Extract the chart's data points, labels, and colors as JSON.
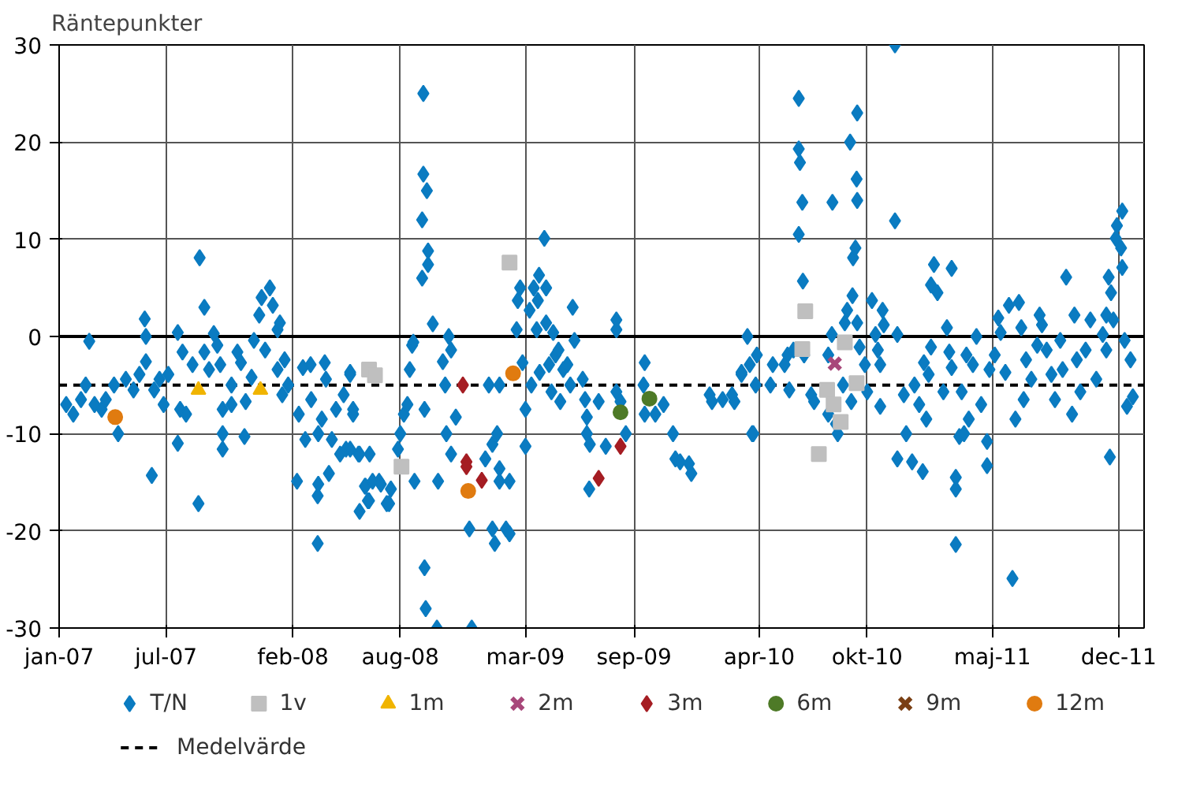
{
  "chart_data": {
    "type": "scatter",
    "ylabel": "Räntepunkter",
    "xlim": [
      "2007-01-01",
      "2012-01-13"
    ],
    "ylim": [
      -30,
      30
    ],
    "xticks": [
      {
        "value": "2007-01-01",
        "label": "jan-07"
      },
      {
        "value": "2007-07-01",
        "label": "jul-07"
      },
      {
        "value": "2008-02-01",
        "label": "feb-08"
      },
      {
        "value": "2008-08-01",
        "label": "aug-08"
      },
      {
        "value": "2009-03-01",
        "label": "mar-09"
      },
      {
        "value": "2009-09-01",
        "label": "sep-09"
      },
      {
        "value": "2010-04-01",
        "label": "apr-10"
      },
      {
        "value": "2010-10-01",
        "label": "okt-10"
      },
      {
        "value": "2011-05-01",
        "label": "maj-11"
      },
      {
        "value": "2011-12-01",
        "label": "dec-11"
      }
    ],
    "yticks": [
      -30,
      -20,
      -10,
      0,
      10,
      20,
      30
    ],
    "grid": true,
    "legend": "bottom",
    "ref_lines": [
      {
        "axis": "y",
        "value": 0,
        "color": "#000000",
        "line_style": "solid"
      },
      {
        "axis": "y",
        "value": -5,
        "label": "Medelvärde",
        "color": "#000000",
        "line_style": "dashed"
      }
    ],
    "series": [
      {
        "name": "T/N",
        "color": "#0a7bc1",
        "marker": "diamond",
        "x": [
          "2007-01-13",
          "2007-01-25",
          "2007-02-07",
          "2007-02-21",
          "2007-02-15",
          "2007-03-02",
          "2007-03-14",
          "2007-03-21",
          "2007-04-04",
          "2007-04-11",
          "2007-04-24",
          "2007-05-07",
          "2007-05-17",
          "2007-05-26",
          "2007-05-28",
          "2007-05-28",
          "2007-06-07",
          "2007-06-11",
          "2007-06-20",
          "2007-06-27",
          "2007-07-05",
          "2007-07-21",
          "2007-07-21",
          "2007-07-29",
          "2007-07-25",
          "2007-08-04",
          "2007-08-15",
          "2007-08-25",
          "2007-08-27",
          "2007-09-04",
          "2007-09-04",
          "2007-09-12",
          "2007-09-20",
          "2007-09-26",
          "2007-10-01",
          "2007-10-05",
          "2007-10-05",
          "2007-10-20",
          "2007-10-05",
          "2007-10-20",
          "2007-10-30",
          "2007-11-05",
          "2007-11-11",
          "2007-11-13",
          "2007-11-23",
          "2007-11-27",
          "2007-12-06",
          "2007-12-10",
          "2007-12-16",
          "2007-12-24",
          "2007-12-29",
          "2008-01-06",
          "2008-01-10",
          "2008-01-06",
          "2008-01-18",
          "2008-01-14",
          "2008-01-24",
          "2008-02-08",
          "2008-02-11",
          "2008-02-18",
          "2008-02-22",
          "2008-03-02",
          "2008-03-03",
          "2008-03-14",
          "2008-03-14",
          "2008-03-15",
          "2008-03-15",
          "2008-03-21",
          "2008-03-26",
          "2008-03-28",
          "2008-04-02",
          "2008-04-07",
          "2008-04-14",
          "2008-04-21",
          "2008-04-27",
          "2008-05-01",
          "2008-05-08",
          "2008-05-13",
          "2008-05-22",
          "2008-05-24",
          "2008-06-02",
          "2008-06-09",
          "2008-06-10",
          "2008-06-26",
          "2008-07-09",
          "2008-06-07",
          "2008-06-03",
          "2008-06-15",
          "2008-06-29",
          "2008-07-13",
          "2008-07-16",
          "2008-05-24",
          "2008-05-08",
          "2008-05-13",
          "2008-05-08",
          "2008-08-01",
          "2008-07-28",
          "2008-08-07",
          "2008-08-13",
          "2008-08-17",
          "2008-08-21",
          "2008-08-23",
          "2008-08-25",
          "2008-09-09",
          "2008-09-09",
          "2008-09-15",
          "2008-09-07",
          "2008-09-17",
          "2008-09-17",
          "2008-09-07",
          "2008-09-11",
          "2008-09-13",
          "2008-10-02",
          "2008-09-11",
          "2008-09-25",
          "2008-10-04",
          "2008-10-12",
          "2008-10-16",
          "2008-10-18",
          "2008-10-22",
          "2008-10-26",
          "2008-11-03",
          "2008-10-26",
          "2008-11-26",
          "2008-11-30",
          "2008-12-23",
          "2008-12-29",
          "2009-01-04",
          "2009-01-08",
          "2009-01-04",
          "2009-01-12",
          "2009-01-16",
          "2009-01-16",
          "2009-01-27",
          "2009-02-02",
          "2009-02-02",
          "2009-01-16",
          "2009-02-14",
          "2009-02-16",
          "2009-02-20",
          "2009-02-24",
          "2009-03-01",
          "2009-03-01",
          "2009-03-08",
          "2009-03-11",
          "2009-03-15",
          "2009-03-20",
          "2009-03-22",
          "2009-03-24",
          "2009-03-25",
          "2009-04-02",
          "2009-04-05",
          "2009-04-05",
          "2009-04-10",
          "2009-04-14",
          "2009-04-17",
          "2009-04-21",
          "2009-04-26",
          "2009-04-29",
          "2009-05-04",
          "2009-05-11",
          "2009-05-16",
          "2009-05-20",
          "2009-05-23",
          "2009-06-06",
          "2009-06-10",
          "2009-06-13",
          "2009-06-13",
          "2009-06-18",
          "2009-06-17",
          "2009-07-03",
          "2009-07-15",
          "2009-08-02",
          "2009-08-02",
          "2009-08-02",
          "2009-08-09",
          "2009-08-18",
          "2009-09-19",
          "2009-09-17",
          "2009-09-19",
          "2009-10-07",
          "2009-10-21",
          "2009-11-06",
          "2009-11-10",
          "2009-11-18",
          "2009-12-03",
          "2009-12-07",
          "2010-01-07",
          "2010-01-11",
          "2010-01-29",
          "2010-02-18",
          "2010-03-02",
          "2010-03-12",
          "2010-03-16",
          "2010-03-22",
          "2010-02-14",
          "2010-03-20",
          "2010-03-28",
          "2010-03-02",
          "2010-03-26",
          "2010-04-24",
          "2010-04-20",
          "2010-05-14",
          "2010-05-19",
          "2010-05-22",
          "2010-05-29",
          "2010-06-07",
          "2010-06-07",
          "2010-06-09",
          "2010-06-13",
          "2010-06-07",
          "2010-06-14",
          "2010-06-16",
          "2010-06-28",
          "2010-07-03",
          "2010-07-27",
          "2010-08-02",
          "2010-08-03",
          "2010-07-27",
          "2010-08-09",
          "2010-08-12",
          "2010-08-21",
          "2010-08-24",
          "2010-08-28",
          "2010-09-02",
          "2010-09-06",
          "2010-09-07",
          "2010-09-11",
          "2010-09-13",
          "2010-09-14",
          "2010-09-14",
          "2010-09-14",
          "2010-09-04",
          "2010-09-18",
          "2010-09-27",
          "2010-10-01",
          "2010-10-09",
          "2010-10-15",
          "2010-10-19",
          "2010-10-23",
          "2010-10-23",
          "2010-10-27",
          "2010-10-29",
          "2010-11-17",
          "2010-11-17",
          "2010-11-21",
          "2010-11-21",
          "2010-12-02",
          "2010-12-06",
          "2010-12-16",
          "2010-12-20",
          "2010-12-28",
          "2011-01-03",
          "2011-01-05",
          "2011-01-09",
          "2011-01-13",
          "2011-01-17",
          "2011-01-17",
          "2011-01-22",
          "2011-01-28",
          "2011-02-07",
          "2011-02-13",
          "2011-02-17",
          "2011-02-21",
          "2011-02-21",
          "2011-02-28",
          "2011-02-28",
          "2011-02-28",
          "2011-03-06",
          "2011-03-10",
          "2011-03-14",
          "2011-03-18",
          "2011-03-22",
          "2011-03-29",
          "2011-04-04",
          "2011-04-12",
          "2011-04-22",
          "2011-04-22",
          "2011-04-26",
          "2011-05-05",
          "2011-05-11",
          "2011-05-15",
          "2011-05-23",
          "2011-05-29",
          "2011-06-04",
          "2011-06-09",
          "2011-06-15",
          "2011-06-19",
          "2011-06-23",
          "2011-06-27",
          "2011-07-06",
          "2011-07-16",
          "2011-07-20",
          "2011-07-24",
          "2011-08-01",
          "2011-08-09",
          "2011-08-15",
          "2011-08-24",
          "2011-08-28",
          "2011-09-03",
          "2011-09-13",
          "2011-09-17",
          "2011-09-21",
          "2011-09-27",
          "2011-10-06",
          "2011-10-14",
          "2011-10-24",
          "2011-11-04",
          "2011-11-10",
          "2011-11-10",
          "2011-11-14",
          "2011-11-16",
          "2011-11-18",
          "2011-11-22",
          "2011-11-26",
          "2011-11-28",
          "2011-12-05",
          "2011-12-07",
          "2011-12-07",
          "2011-12-11",
          "2011-12-15",
          "2011-12-21",
          "2011-12-25"
        ],
        "values": [
          -7.0,
          -8.0,
          -6.5,
          -0.5,
          -5,
          -7,
          -7.5,
          -6.5,
          -5,
          -10,
          -4.4,
          -5.5,
          -3.9,
          1.8,
          0,
          -2.6,
          -14.3,
          -5.5,
          -4.4,
          -7,
          -3.9,
          0.4,
          -11,
          -1.6,
          -7.5,
          -8,
          -2.9,
          -17.2,
          8.1,
          3,
          -1.6,
          -3.4,
          0.3,
          -0.9,
          -2.9,
          -7.5,
          -11.6,
          -7,
          -10,
          -5,
          -1.6,
          -2.7,
          -10.3,
          -6.7,
          -4.2,
          -0.4,
          2.2,
          4,
          -1.4,
          5,
          3.2,
          0.7,
          1.4,
          -3.4,
          -2.4,
          -6,
          -5,
          -14.9,
          -8,
          -3.2,
          -10.6,
          -2.9,
          -6.5,
          -21.3,
          -16.4,
          -15.2,
          -10,
          -8.5,
          -2.7,
          -4.4,
          -14.1,
          -10.6,
          -7.5,
          -12.1,
          -6,
          -11.6,
          -3.7,
          -8,
          -12.1,
          -18,
          -15.4,
          -16.9,
          -12.1,
          -14.9,
          -17.2,
          -16.9,
          -15.4,
          -14.9,
          -15.2,
          -17.2,
          -15.7,
          -12.1,
          -11.6,
          -7.5,
          -3.9,
          -10,
          -11.6,
          -8,
          -7,
          -3.4,
          -0.9,
          -0.6,
          -14.9,
          25,
          16.7,
          15,
          12,
          8.8,
          7.4,
          6,
          -23.8,
          -28,
          -30,
          -7.5,
          1.3,
          -14.9,
          -2.6,
          -5,
          -10,
          0,
          -1.4,
          -8.3,
          -12.1,
          -19.8,
          -30,
          -12.6,
          -5,
          -19.8,
          -21.3,
          -11.1,
          -10,
          -13.6,
          -14.9,
          -19.8,
          -20.3,
          -14.9,
          -5,
          0.7,
          3.7,
          5,
          -2.7,
          -7.5,
          -11.3,
          2.7,
          -5,
          5,
          0.7,
          3.7,
          6.3,
          -3.7,
          10.1,
          5,
          1.4,
          -2.9,
          -5.7,
          0.4,
          -1.9,
          -1.4,
          -6.7,
          -3.4,
          -2.9,
          -5,
          3,
          -0.4,
          -4.4,
          -6.5,
          -8.3,
          -10,
          -11.1,
          -15.7,
          -6.7,
          -11.3,
          1.7,
          0.7,
          -5.7,
          -6.7,
          -10,
          -2.7,
          -5,
          -8,
          -8,
          -7,
          -10,
          -12.6,
          -12.9,
          -13.1,
          -14.1,
          -6,
          -6.7,
          -6.5,
          -6.7,
          -3.7,
          0,
          -2.9,
          -10,
          -6,
          -10,
          -1.9,
          -3.9,
          -5,
          -2.9,
          -5,
          -2.9,
          -1.9,
          -5.5,
          -1.4,
          24.5,
          19.3,
          17.9,
          13.8,
          10.5,
          5.7,
          -1.9,
          -6,
          -6.7,
          -1.9,
          0.2,
          13.8,
          -8,
          -9,
          -10,
          -5,
          1.4,
          2.7,
          20,
          4.2,
          8.1,
          9.1,
          16.2,
          23,
          14,
          1.4,
          -6.7,
          -1.1,
          -2.9,
          -5.7,
          3.7,
          0.2,
          -1.4,
          -2.9,
          -7.2,
          2.7,
          1.2,
          30,
          11.9,
          0.2,
          -12.6,
          -6,
          -10,
          -12.9,
          -5,
          -7,
          -13.9,
          -2.7,
          -8.5,
          -3.9,
          -1.1,
          5.3,
          7.4,
          4.5,
          -5.7,
          0.9,
          -1.6,
          7,
          -3.2,
          -15.7,
          -14.5,
          -21.4,
          -10.3,
          -5.7,
          -10,
          -1.9,
          -8.5,
          -2.9,
          0,
          -7,
          -13.3,
          -10.8,
          -3.4,
          -1.9,
          1.9,
          0.4,
          -3.7,
          3.2,
          -24.9,
          -8.5,
          3.5,
          0.9,
          -6.5,
          -2.4,
          -4.4,
          -0.9,
          2.2,
          1.2,
          -1.4,
          -3.9,
          -6.5,
          -0.4,
          -3.4,
          6.1,
          -8,
          2.2,
          -2.4,
          -5.7,
          -1.4,
          1.7,
          -4.4,
          0.2,
          -1.4,
          2.2,
          6.1,
          -12.4,
          4.5,
          1.7,
          10.1,
          11.4,
          9.1,
          12.9,
          7.1,
          -0.4,
          -7.2,
          -2.4,
          -6.2
        ]
      },
      {
        "name": "1v",
        "color": "#bfbfbf",
        "marker": "square",
        "x": [
          "2008-06-09",
          "2008-06-19",
          "2008-08-03",
          "2009-02-02",
          "2010-06-18",
          "2010-06-13",
          "2010-08-24",
          "2010-07-25",
          "2010-08-05",
          "2010-08-17",
          "2010-07-11",
          "2010-09-13"
        ],
        "values": [
          -3.4,
          -4.0,
          -13.4,
          7.6,
          2.6,
          -1.3,
          -0.6,
          -5.5,
          -7,
          -8.8,
          -12.1,
          -4.8
        ]
      },
      {
        "name": "1m",
        "color": "#f0b400",
        "marker": "triangle",
        "x": [
          "2007-08-25",
          "2007-12-08"
        ],
        "values": [
          -5.5,
          -5.5
        ]
      },
      {
        "name": "2m",
        "color": "#a8477a",
        "marker": "cross",
        "x": [
          "2010-08-07"
        ],
        "values": [
          -2.8
        ]
      },
      {
        "name": "3m",
        "color": "#a51d23",
        "marker": "diamond",
        "x": [
          "2008-11-15",
          "2008-11-21",
          "2008-11-21",
          "2008-12-17",
          "2009-07-03",
          "2009-08-09"
        ],
        "values": [
          -5,
          -12.9,
          -13.4,
          -14.8,
          -14.6,
          -11.3
        ]
      },
      {
        "name": "6m",
        "color": "#4e7a27",
        "marker": "circle",
        "x": [
          "2009-08-09",
          "2009-09-27"
        ],
        "values": [
          -7.8,
          -6.4
        ]
      },
      {
        "name": "9m",
        "color": "#7a3f14",
        "marker": "cross"
      },
      {
        "name": "12m",
        "color": "#e07b10",
        "marker": "circle",
        "x": [
          "2007-04-06",
          "2008-11-24",
          "2009-02-08"
        ],
        "values": [
          -8.3,
          -15.9,
          -3.8
        ]
      }
    ]
  }
}
